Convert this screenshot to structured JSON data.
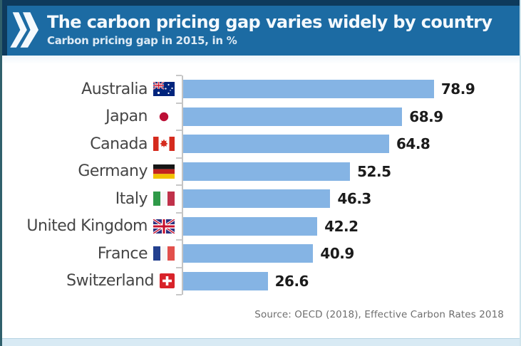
{
  "header": {
    "title": "The carbon pricing gap varies widely by country",
    "subtitle": "Carbon pricing gap in 2015, in %"
  },
  "source": "Source: OECD (2018), Effective Carbon Rates 2018",
  "icons": {
    "header_chevron": "double-chevron-right"
  },
  "colors": {
    "header_bg": "#1c6ba3",
    "header_trim": "#0e3a5c",
    "bar": "#85b4e4",
    "axis": "#c4c4c4",
    "label_text": "#454545",
    "value_text": "#1b1b1b",
    "source_text": "#6e6e6e",
    "bottom_strip": "#d8eaf4"
  },
  "chart_data": {
    "type": "bar",
    "orientation": "horizontal",
    "title": "The carbon pricing gap varies widely by country",
    "subtitle": "Carbon pricing gap in 2015, in %",
    "categories": [
      "Australia",
      "Japan",
      "Canada",
      "Germany",
      "Italy",
      "United Kingdom",
      "France",
      "Switzerland"
    ],
    "values": [
      78.9,
      68.9,
      64.8,
      52.5,
      46.3,
      42.2,
      40.9,
      26.6
    ],
    "flags": [
      "australia",
      "japan",
      "canada",
      "germany",
      "italy",
      "united-kingdom",
      "france",
      "switzerland"
    ],
    "xlim": [
      0,
      100
    ],
    "value_labels": true,
    "grid": false,
    "legend": false,
    "sorted": "descending",
    "source": "Source: OECD (2018), Effective Carbon Rates 2018"
  }
}
